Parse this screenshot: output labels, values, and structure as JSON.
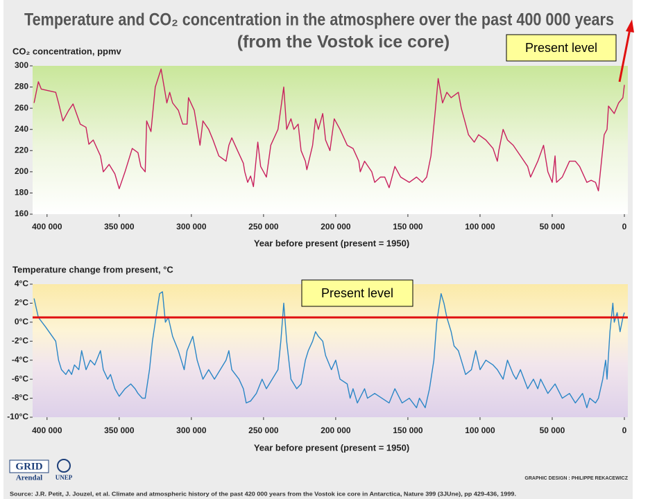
{
  "title": "Temperature and CO₂ concentration in the atmosphere over the past 400 000 years",
  "subtitle": "(from the Vostok ice core)",
  "annotations": [
    "Present level",
    "Present level"
  ],
  "logos": [
    "GRID",
    "Arendal",
    "UNEP"
  ],
  "credit": "GRAPHIC DESIGN : PHILIPPE REKACEWICZ",
  "source": "Source: J.R. Petit, J. Jouzel, et al. Climate and atmospheric history of the past 420 000 years from the Vostok ice core in Antarctica, Nature 399 (3JUne), pp 429-436, 1999.",
  "chart_data": [
    {
      "type": "line",
      "y_label": "CO₂ concentration, ppmv",
      "x_label": "Year before present (present = 1950)",
      "color": "#c8205e",
      "xlim": [
        410000,
        0
      ],
      "xticks": [
        {
          "value": 400000,
          "label": "400 000"
        },
        {
          "value": 350000,
          "label": "350 000"
        },
        {
          "value": 300000,
          "label": "300 000"
        },
        {
          "value": 250000,
          "label": "250 000"
        },
        {
          "value": 200000,
          "label": "200 000"
        },
        {
          "value": 150000,
          "label": "150 000"
        },
        {
          "value": 100000,
          "label": "100 000"
        },
        {
          "value": 50000,
          "label": "50 000"
        },
        0
      ],
      "ylim": [
        160,
        300
      ],
      "yticks": [
        160,
        180,
        200,
        220,
        240,
        260,
        280,
        300
      ],
      "x": [
        409000,
        406000,
        404000,
        394000,
        392000,
        389000,
        385000,
        382000,
        377000,
        373000,
        371000,
        368000,
        363000,
        361000,
        357000,
        353000,
        350000,
        346000,
        341000,
        337000,
        335000,
        332000,
        331000,
        328000,
        325000,
        321000,
        317000,
        315000,
        313000,
        309000,
        306000,
        303000,
        302000,
        298000,
        294000,
        292000,
        288000,
        285000,
        281000,
        276000,
        274000,
        272000,
        268000,
        264000,
        263000,
        261000,
        259000,
        257000,
        254000,
        252000,
        248000,
        245000,
        240000,
        236000,
        234000,
        231000,
        229000,
        226000,
        224000,
        221000,
        220000,
        216000,
        214000,
        212000,
        209000,
        207000,
        204000,
        201000,
        197000,
        192000,
        188000,
        184000,
        183000,
        180000,
        175000,
        173000,
        169000,
        166000,
        163000,
        159000,
        155000,
        149000,
        144000,
        140000,
        137000,
        134000,
        131000,
        129000,
        126000,
        123000,
        120000,
        115000,
        113000,
        111000,
        108000,
        104000,
        101000,
        96000,
        91000,
        88000,
        87000,
        84000,
        81000,
        77000,
        72000,
        67000,
        65000,
        60000,
        56000,
        53000,
        50000,
        48000,
        47000,
        43000,
        38000,
        34000,
        31000,
        26000,
        23000,
        20000,
        18000,
        14000,
        12000,
        11000,
        7000,
        4000,
        1000,
        0
      ],
      "values": [
        265,
        285,
        278,
        275,
        265,
        248,
        258,
        264,
        245,
        242,
        226,
        230,
        215,
        200,
        207,
        198,
        184,
        200,
        222,
        218,
        205,
        200,
        248,
        238,
        280,
        297,
        265,
        275,
        265,
        258,
        245,
        245,
        270,
        258,
        225,
        248,
        240,
        230,
        215,
        210,
        225,
        232,
        220,
        208,
        200,
        190,
        196,
        186,
        228,
        205,
        195,
        225,
        240,
        280,
        240,
        250,
        240,
        245,
        220,
        210,
        202,
        225,
        250,
        240,
        255,
        230,
        220,
        250,
        240,
        225,
        222,
        210,
        200,
        210,
        200,
        190,
        195,
        195,
        185,
        205,
        195,
        190,
        195,
        190,
        195,
        215,
        258,
        288,
        265,
        275,
        270,
        275,
        260,
        250,
        235,
        228,
        235,
        230,
        222,
        210,
        220,
        240,
        230,
        225,
        215,
        205,
        195,
        210,
        225,
        200,
        190,
        215,
        190,
        195,
        210,
        210,
        205,
        190,
        192,
        190,
        182,
        235,
        240,
        262,
        255,
        265,
        270,
        282
      ]
    },
    {
      "type": "line",
      "y_label": "Temperature change from present, °C",
      "x_label": "Year before present (present = 1950)",
      "color": "#2a86c6",
      "xlim": [
        410000,
        0
      ],
      "xticks": [
        {
          "value": 400000,
          "label": "400 000"
        },
        {
          "value": 350000,
          "label": "350 000"
        },
        {
          "value": 300000,
          "label": "300 000"
        },
        {
          "value": 250000,
          "label": "250 000"
        },
        {
          "value": 200000,
          "label": "200 000"
        },
        {
          "value": 150000,
          "label": "150 000"
        },
        {
          "value": 100000,
          "label": "100 000"
        },
        {
          "value": 50000,
          "label": "50 000"
        },
        0
      ],
      "ylim": [
        -10,
        4
      ],
      "yticks": [
        {
          "value": -10,
          "label": "-10°C"
        },
        {
          "value": -8,
          "label": "-8°C"
        },
        {
          "value": -6,
          "label": "-6°C"
        },
        {
          "value": -4,
          "label": "-4°C"
        },
        {
          "value": -2,
          "label": "-2°C"
        },
        {
          "value": 0,
          "label": "0°C"
        },
        {
          "value": 2,
          "label": "2°C"
        },
        {
          "value": 4,
          "label": "4°C"
        }
      ],
      "x": [
        409000,
        406000,
        401000,
        394000,
        392000,
        390000,
        387000,
        385000,
        383000,
        381000,
        378000,
        376000,
        373000,
        370000,
        367000,
        363000,
        361000,
        358000,
        356000,
        353000,
        350000,
        346000,
        342000,
        339000,
        337000,
        334000,
        332000,
        329000,
        327000,
        325000,
        322000,
        320000,
        318000,
        316000,
        313000,
        309000,
        305000,
        303000,
        299000,
        296000,
        292000,
        288000,
        284000,
        280000,
        276000,
        274000,
        272000,
        267000,
        264000,
        262000,
        259000,
        255000,
        251000,
        248000,
        244000,
        240000,
        238000,
        236000,
        234000,
        231000,
        227000,
        224000,
        221000,
        219000,
        216000,
        214000,
        212000,
        209000,
        207000,
        203000,
        200000,
        197000,
        192000,
        190000,
        188000,
        185000,
        180000,
        178000,
        173000,
        168000,
        163000,
        159000,
        154000,
        149000,
        144000,
        142000,
        138000,
        135000,
        132000,
        130000,
        127000,
        125000,
        123000,
        120000,
        118000,
        115000,
        113000,
        110000,
        106000,
        103000,
        100000,
        96000,
        91000,
        88000,
        84000,
        81000,
        77000,
        75000,
        72000,
        67000,
        63000,
        60000,
        58000,
        53000,
        48000,
        43000,
        38000,
        34000,
        29000,
        26000,
        24000,
        20000,
        18000,
        15000,
        13000,
        12000,
        10000,
        8000,
        7000,
        5000,
        3000,
        1000,
        0
      ],
      "values": [
        2.5,
        0.5,
        -0.5,
        -2,
        -4,
        -5,
        -5.5,
        -5,
        -5.5,
        -4.5,
        -5,
        -3,
        -5,
        -4,
        -4.5,
        -3,
        -5,
        -6,
        -5.5,
        -7,
        -7.8,
        -7,
        -6.5,
        -7,
        -7.5,
        -8,
        -8,
        -5,
        -2,
        0,
        3,
        3.2,
        0,
        0.5,
        -1.5,
        -3,
        -5,
        -3,
        -1.5,
        -4,
        -6,
        -5,
        -6,
        -5,
        -4,
        -3,
        -5,
        -6,
        -7,
        -8.5,
        -8.3,
        -7.5,
        -6,
        -7,
        -6,
        -5,
        -2,
        2,
        -2,
        -6,
        -7,
        -6.5,
        -4,
        -3,
        -2,
        -1,
        -1.5,
        -2,
        -3.5,
        -5,
        -4,
        -6,
        -6.5,
        -8,
        -7,
        -8.5,
        -7,
        -8,
        -7.5,
        -8,
        -8.5,
        -7,
        -8.5,
        -8,
        -9,
        -8,
        -9,
        -7,
        -4,
        0,
        3,
        2,
        0.5,
        -1,
        -2.5,
        -3,
        -4,
        -5.5,
        -5,
        -3,
        -5,
        -4,
        -4.5,
        -5,
        -6,
        -4,
        -5.5,
        -6,
        -5,
        -7,
        -6,
        -7,
        -6,
        -7.5,
        -6.5,
        -8,
        -7.5,
        -8.5,
        -7.5,
        -9,
        -8,
        -8.5,
        -8,
        -6,
        -4,
        -6,
        -1,
        2,
        0,
        1,
        -1,
        0.5,
        1
      ]
    }
  ]
}
